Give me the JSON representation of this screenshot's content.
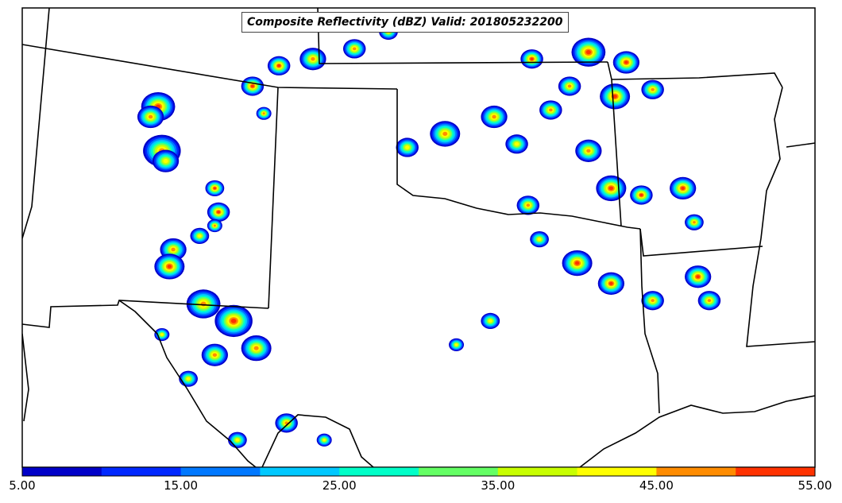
{
  "title": "Composite Reflectivity (dBZ) Valid: 201805232200",
  "colorbar": {
    "colors": [
      "#0000c8",
      "#0028ff",
      "#0078ff",
      "#00c8ff",
      "#00ffc8",
      "#64ff64",
      "#c8ff00",
      "#ffff00",
      "#ff8c00",
      "#ff3200",
      "#c80000",
      "#8b0000"
    ],
    "ticks": [
      "5.00",
      "15.00",
      "25.00",
      "35.00",
      "45.00",
      "55.00"
    ],
    "min": 5,
    "max": 55,
    "step": 5
  },
  "cells": [
    {
      "name": "nm-west-line-1",
      "x": -104.4,
      "y": 35.6,
      "r": 0.45,
      "peak": 50
    },
    {
      "name": "nm-west-line-2",
      "x": -104.6,
      "y": 35.3,
      "r": 0.35,
      "peak": 45
    },
    {
      "name": "nm-west-line-3",
      "x": -104.3,
      "y": 34.3,
      "r": 0.5,
      "peak": 45
    },
    {
      "name": "nm-west-line-4",
      "x": -104.2,
      "y": 34.0,
      "r": 0.35,
      "peak": 40
    },
    {
      "name": "nm-east-1",
      "x": -102.9,
      "y": 33.2,
      "r": 0.25,
      "peak": 50
    },
    {
      "name": "nm-east-2",
      "x": -102.8,
      "y": 32.5,
      "r": 0.3,
      "peak": 50
    },
    {
      "name": "nm-east-3",
      "x": -102.9,
      "y": 32.1,
      "r": 0.2,
      "peak": 45
    },
    {
      "name": "nm-south-1",
      "x": -104.0,
      "y": 31.4,
      "r": 0.35,
      "peak": 45
    },
    {
      "name": "nm-south-2",
      "x": -104.1,
      "y": 30.9,
      "r": 0.4,
      "peak": 50
    },
    {
      "name": "nm-south-3",
      "x": -103.3,
      "y": 31.8,
      "r": 0.25,
      "peak": 40
    },
    {
      "name": "tx-west-1",
      "x": -103.2,
      "y": 29.8,
      "r": 0.45,
      "peak": 45
    },
    {
      "name": "tx-west-2",
      "x": -102.4,
      "y": 29.3,
      "r": 0.5,
      "peak": 50
    },
    {
      "name": "tx-west-3",
      "x": -101.8,
      "y": 28.5,
      "r": 0.4,
      "peak": 45
    },
    {
      "name": "tx-west-4",
      "x": -102.9,
      "y": 28.3,
      "r": 0.35,
      "peak": 45
    },
    {
      "name": "tx-bigbend-1",
      "x": -103.6,
      "y": 27.6,
      "r": 0.25,
      "peak": 40
    },
    {
      "name": "tx-bigbend-2",
      "x": -104.3,
      "y": 28.9,
      "r": 0.2,
      "peak": 40
    },
    {
      "name": "tx-south-1",
      "x": -101.0,
      "y": 26.3,
      "r": 0.3,
      "peak": 45
    },
    {
      "name": "tx-south-2",
      "x": -100.0,
      "y": 25.8,
      "r": 0.2,
      "peak": 40
    },
    {
      "name": "tx-south-3",
      "x": -102.3,
      "y": 25.8,
      "r": 0.25,
      "peak": 40
    },
    {
      "name": "ok-panhandle-1",
      "x": -101.2,
      "y": 36.8,
      "r": 0.3,
      "peak": 50
    },
    {
      "name": "ok-panhandle-2",
      "x": -100.3,
      "y": 37.0,
      "r": 0.35,
      "peak": 45
    },
    {
      "name": "ks-south-1",
      "x": -99.2,
      "y": 37.3,
      "r": 0.3,
      "peak": 45
    },
    {
      "name": "ks-south-2",
      "x": -98.3,
      "y": 37.8,
      "r": 0.25,
      "peak": 40
    },
    {
      "name": "tx-pan-1",
      "x": -101.9,
      "y": 36.2,
      "r": 0.3,
      "peak": 50
    },
    {
      "name": "tx-pan-2",
      "x": -101.6,
      "y": 35.4,
      "r": 0.2,
      "peak": 45
    },
    {
      "name": "ok-central-1",
      "x": -97.8,
      "y": 34.4,
      "r": 0.3,
      "peak": 40
    },
    {
      "name": "ok-central-2",
      "x": -96.8,
      "y": 34.8,
      "r": 0.4,
      "peak": 45
    },
    {
      "name": "ok-east-1",
      "x": -95.5,
      "y": 35.3,
      "r": 0.35,
      "peak": 45
    },
    {
      "name": "ok-east-2",
      "x": -94.9,
      "y": 34.5,
      "r": 0.3,
      "peak": 40
    },
    {
      "name": "mo-1",
      "x": -94.5,
      "y": 37.0,
      "r": 0.3,
      "peak": 50
    },
    {
      "name": "mo-2",
      "x": -93.0,
      "y": 37.2,
      "r": 0.45,
      "peak": 50
    },
    {
      "name": "mo-3",
      "x": -92.0,
      "y": 36.9,
      "r": 0.35,
      "peak": 50
    },
    {
      "name": "mo-4",
      "x": -93.5,
      "y": 36.2,
      "r": 0.3,
      "peak": 45
    },
    {
      "name": "mo-5",
      "x": -92.3,
      "y": 35.9,
      "r": 0.4,
      "peak": 50
    },
    {
      "name": "mo-6",
      "x": -91.3,
      "y": 36.1,
      "r": 0.3,
      "peak": 45
    },
    {
      "name": "ar-n-1",
      "x": -94.0,
      "y": 35.5,
      "r": 0.3,
      "peak": 45
    },
    {
      "name": "ar-c-1",
      "x": -93.0,
      "y": 34.3,
      "r": 0.35,
      "peak": 45
    },
    {
      "name": "ar-s-1",
      "x": -92.4,
      "y": 33.2,
      "r": 0.4,
      "peak": 50
    },
    {
      "name": "ar-s-2",
      "x": -91.6,
      "y": 33.0,
      "r": 0.3,
      "peak": 50
    },
    {
      "name": "ms-1",
      "x": -90.5,
      "y": 33.2,
      "r": 0.35,
      "peak": 50
    },
    {
      "name": "ms-2",
      "x": -90.2,
      "y": 32.2,
      "r": 0.25,
      "peak": 45
    },
    {
      "name": "la-1",
      "x": -93.3,
      "y": 31.0,
      "r": 0.4,
      "peak": 50
    },
    {
      "name": "la-2",
      "x": -92.4,
      "y": 30.4,
      "r": 0.35,
      "peak": 50
    },
    {
      "name": "la-3",
      "x": -91.3,
      "y": 29.9,
      "r": 0.3,
      "peak": 45
    },
    {
      "name": "la-4",
      "x": -90.1,
      "y": 30.6,
      "r": 0.35,
      "peak": 50
    },
    {
      "name": "la-5",
      "x": -89.8,
      "y": 29.9,
      "r": 0.3,
      "peak": 45
    },
    {
      "name": "tx-east-1",
      "x": -94.6,
      "y": 32.7,
      "r": 0.3,
      "peak": 45
    },
    {
      "name": "tx-east-2",
      "x": -94.3,
      "y": 31.7,
      "r": 0.25,
      "peak": 40
    },
    {
      "name": "tx-gulf-1",
      "x": -95.6,
      "y": 29.3,
      "r": 0.25,
      "peak": 40
    },
    {
      "name": "tx-gulf-2",
      "x": -96.5,
      "y": 28.6,
      "r": 0.2,
      "peak": 40
    }
  ]
}
